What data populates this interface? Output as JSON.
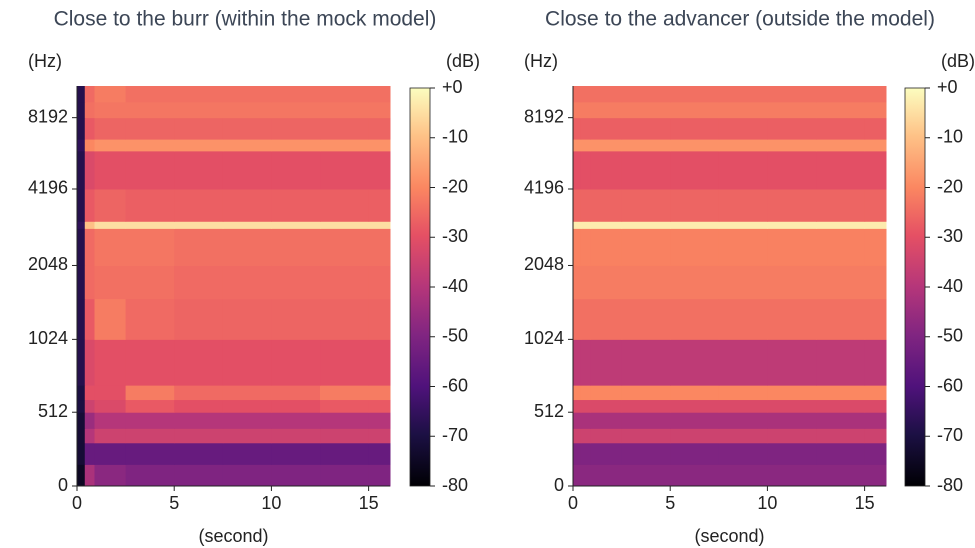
{
  "chart_data": [
    {
      "type": "heatmap",
      "title": "Close to the burr (within the mock model)",
      "x_label": "(second)",
      "y_label": "(Hz)",
      "colorbar_label": "(dB)",
      "colormap": "magma",
      "yscale": "symlog",
      "linthresh": 1000,
      "linscale": 1.95,
      "xlim": [
        0,
        16.1
      ],
      "xticks": [
        0,
        5,
        10,
        15
      ],
      "ylim": [
        0,
        11025
      ],
      "yticks": [
        0,
        512,
        1024,
        2048,
        4196,
        8192
      ],
      "zlim": [
        -80,
        0
      ],
      "zticks": [
        {
          "value": 0,
          "label": "+0"
        },
        -10,
        -20,
        -30,
        -40,
        -50,
        -60,
        -70,
        -80
      ],
      "x_edges": [
        0,
        0.4,
        0.9,
        2.5,
        5,
        7.5,
        10,
        12.5,
        15,
        16.1
      ],
      "y_edges": [
        0,
        150,
        300,
        400,
        512,
        600,
        700,
        1024,
        1500,
        2048,
        2900,
        3100,
        4196,
        6000,
        6700,
        8192,
        9500,
        11025
      ],
      "z": [
        [
          -75,
          -42,
          -48,
          -50,
          -50,
          -50,
          -50,
          -50,
          -50
        ],
        [
          -72,
          -55,
          -55,
          -55,
          -55,
          -55,
          -55,
          -55,
          -55
        ],
        [
          -72,
          -40,
          -35,
          -35,
          -35,
          -35,
          -35,
          -35,
          -35
        ],
        [
          -72,
          -45,
          -40,
          -40,
          -40,
          -40,
          -40,
          -40,
          -40
        ],
        [
          -70,
          -35,
          -32,
          -28,
          -30,
          -30,
          -30,
          -28,
          -28
        ],
        [
          -70,
          -30,
          -30,
          -22,
          -25,
          -25,
          -25,
          -22,
          -22
        ],
        [
          -68,
          -32,
          -30,
          -30,
          -30,
          -30,
          -30,
          -30,
          -30
        ],
        [
          -68,
          -28,
          -22,
          -25,
          -26,
          -26,
          -26,
          -26,
          -26
        ],
        [
          -68,
          -25,
          -24,
          -24,
          -25,
          -25,
          -25,
          -25,
          -25
        ],
        [
          -68,
          -25,
          -23,
          -23,
          -24,
          -24,
          -24,
          -24,
          -24
        ],
        [
          -66,
          -10,
          -5,
          -5,
          -5,
          -5,
          -5,
          -5,
          -5
        ],
        [
          -68,
          -28,
          -26,
          -27,
          -27,
          -27,
          -27,
          -27,
          -27
        ],
        [
          -68,
          -32,
          -30,
          -30,
          -30,
          -30,
          -30,
          -30,
          -30
        ],
        [
          -66,
          -20,
          -18,
          -18,
          -18,
          -18,
          -18,
          -18,
          -18
        ],
        [
          -68,
          -28,
          -26,
          -26,
          -26,
          -26,
          -26,
          -26,
          -26
        ],
        [
          -68,
          -24,
          -23,
          -23,
          -23,
          -23,
          -23,
          -23,
          -23
        ],
        [
          -68,
          -25,
          -22,
          -24,
          -24,
          -24,
          -24,
          -24,
          -24
        ]
      ]
    },
    {
      "type": "heatmap",
      "title": "Close to the advancer (outside the model)",
      "x_label": "(second)",
      "y_label": "(Hz)",
      "colorbar_label": "(dB)",
      "colormap": "magma",
      "yscale": "symlog",
      "linthresh": 1000,
      "linscale": 1.95,
      "xlim": [
        0,
        16.1
      ],
      "xticks": [
        0,
        5,
        10,
        15
      ],
      "ylim": [
        0,
        11025
      ],
      "yticks": [
        0,
        512,
        1024,
        2048,
        4196,
        8192
      ],
      "zlim": [
        -80,
        0
      ],
      "zticks": [
        {
          "value": 0,
          "label": "+0"
        },
        -10,
        -20,
        -30,
        -40,
        -50,
        -60,
        -70,
        -80
      ],
      "x_edges": [
        0,
        0.4,
        0.9,
        2.5,
        5,
        7.5,
        10,
        12.5,
        15,
        16.1
      ],
      "y_edges": [
        0,
        150,
        300,
        400,
        512,
        600,
        700,
        1024,
        1500,
        2048,
        2900,
        3100,
        4196,
        6000,
        6700,
        8192,
        9500,
        11025
      ],
      "z": [
        [
          -48,
          -48,
          -48,
          -48,
          -48,
          -48,
          -48,
          -48,
          -48
        ],
        [
          -50,
          -50,
          -50,
          -50,
          -50,
          -50,
          -50,
          -50,
          -50
        ],
        [
          -35,
          -35,
          -35,
          -35,
          -35,
          -35,
          -35,
          -35,
          -35
        ],
        [
          -42,
          -42,
          -42,
          -42,
          -42,
          -42,
          -42,
          -42,
          -42
        ],
        [
          -32,
          -32,
          -32,
          -32,
          -32,
          -32,
          -32,
          -32,
          -32
        ],
        [
          -20,
          -20,
          -20,
          -20,
          -20,
          -20,
          -20,
          -20,
          -20
        ],
        [
          -38,
          -38,
          -38,
          -38,
          -38,
          -38,
          -38,
          -38,
          -38
        ],
        [
          -24,
          -24,
          -24,
          -24,
          -24,
          -24,
          -24,
          -24,
          -24
        ],
        [
          -22,
          -22,
          -22,
          -22,
          -22,
          -22,
          -22,
          -22,
          -22
        ],
        [
          -21,
          -21,
          -21,
          -21,
          -21,
          -21,
          -21,
          -21,
          -21
        ],
        [
          -3,
          -3,
          -3,
          -3,
          -3,
          -3,
          -3,
          -3,
          -3
        ],
        [
          -26,
          -26,
          -26,
          -26,
          -26,
          -26,
          -26,
          -26,
          -26
        ],
        [
          -30,
          -30,
          -30,
          -30,
          -30,
          -30,
          -30,
          -30,
          -30
        ],
        [
          -18,
          -18,
          -18,
          -18,
          -18,
          -18,
          -18,
          -18,
          -18
        ],
        [
          -27,
          -27,
          -27,
          -27,
          -27,
          -27,
          -27,
          -27,
          -27
        ],
        [
          -22,
          -22,
          -22,
          -22,
          -22,
          -22,
          -22,
          -22,
          -22
        ],
        [
          -24,
          -24,
          -24,
          -24,
          -24,
          -24,
          -24,
          -24,
          -24
        ]
      ]
    }
  ]
}
